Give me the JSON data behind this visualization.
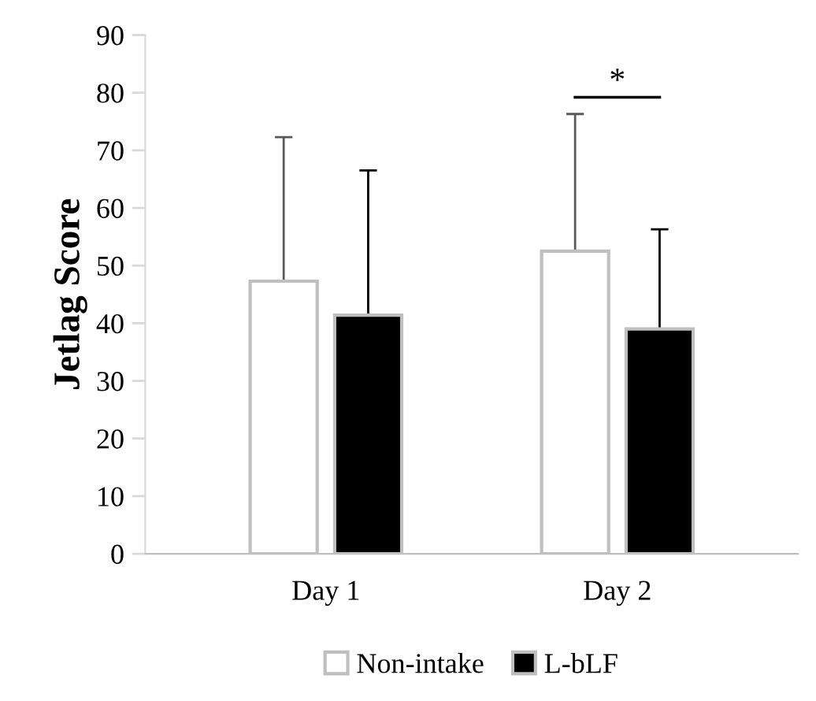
{
  "chart_data": {
    "type": "bar",
    "ylabel": "Jetlag Score",
    "categories": [
      "Day 1",
      "Day 2"
    ],
    "series": [
      {
        "name": "Non-intake",
        "color": "#ffffff",
        "values": [
          47.3,
          52.5
        ],
        "errors": [
          [
            47.3,
            72.3
          ],
          [
            52.5,
            76.3
          ]
        ]
      },
      {
        "name": "L-bLF",
        "color": "#000000",
        "values": [
          41.4,
          39.0
        ],
        "errors": [
          [
            41.4,
            66.5
          ],
          [
            39.0,
            56.3
          ]
        ]
      }
    ],
    "ylim": [
      0,
      90
    ],
    "yticks": [
      0,
      10,
      20,
      30,
      40,
      50,
      60,
      70,
      80,
      90
    ],
    "grid": false,
    "legend": "bottom",
    "annotations": [
      "*"
    ]
  }
}
